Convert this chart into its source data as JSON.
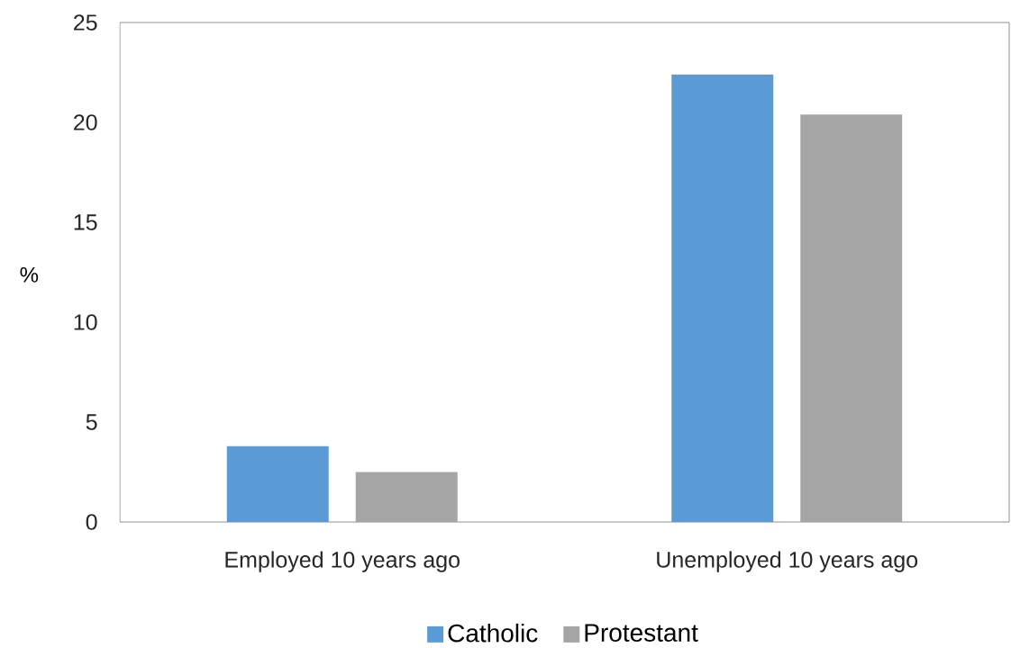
{
  "chart_data": {
    "type": "bar",
    "ylabel": "%",
    "categories": [
      "Employed 10 years ago",
      "Unemployed 10 years ago"
    ],
    "series": [
      {
        "name": "Catholic",
        "color": "#5b9bd5",
        "values": [
          3.8,
          22.4
        ]
      },
      {
        "name": "Protestant",
        "color": "#a5a5a5",
        "values": [
          2.5,
          20.4
        ]
      }
    ],
    "ylim": [
      0,
      25
    ],
    "yticks": [
      0,
      5,
      10,
      15,
      20,
      25
    ],
    "legend": "bottom"
  }
}
